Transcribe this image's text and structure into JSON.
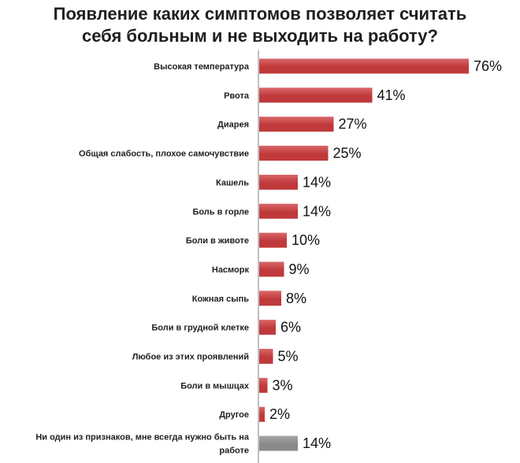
{
  "colors": {
    "bar": "#c0393b",
    "bar_highlight": "#d9686a",
    "bar_other": "#8a8a8a",
    "axis": "#808080"
  },
  "chart_data": {
    "type": "bar",
    "orientation": "horizontal",
    "title_lines": [
      "Появление каких симптомов позволяет считать",
      "себя больным и не выходить на работу?"
    ],
    "categories": [
      "Высокая температура",
      "Рвота",
      "Диарея",
      "Общая слабость, плохое самочувствие",
      "Кашель",
      "Боль в горле",
      "Боли в животе",
      "Насморк",
      "Кожная сыпь",
      "Боли в грудной клетке",
      "Любое из этих проявлений",
      "Боли в мышцах",
      "Другое",
      "Ни один из признаков, мне всегда нужно быть на работе"
    ],
    "category_label_lines": [
      [
        "Высокая температура"
      ],
      [
        "Рвота"
      ],
      [
        "Диарея"
      ],
      [
        "Общая слабость, плохое самочувствие"
      ],
      [
        "Кашель"
      ],
      [
        "Боль в горле"
      ],
      [
        "Боли в животе"
      ],
      [
        "Насморк"
      ],
      [
        "Кожная сыпь"
      ],
      [
        "Боли в грудной клетке"
      ],
      [
        "Любое из этих проявлений"
      ],
      [
        "Боли в мышцах"
      ],
      [
        "Другое"
      ],
      [
        "Ни один из признаков, мне всегда нужно быть на",
        "работе"
      ]
    ],
    "values": [
      76,
      41,
      27,
      25,
      14,
      14,
      10,
      9,
      8,
      6,
      5,
      3,
      2,
      14
    ],
    "value_labels": [
      "76%",
      "41%",
      "27%",
      "25%",
      "14%",
      "14%",
      "10%",
      "9%",
      "8%",
      "6%",
      "5%",
      "3%",
      "2%",
      "14%"
    ],
    "bar_color_keys": [
      "bar",
      "bar",
      "bar",
      "bar",
      "bar",
      "bar",
      "bar",
      "bar",
      "bar",
      "bar",
      "bar",
      "bar",
      "bar",
      "bar_other"
    ],
    "xlim": [
      0,
      76
    ],
    "grid": false,
    "legend": "none"
  }
}
